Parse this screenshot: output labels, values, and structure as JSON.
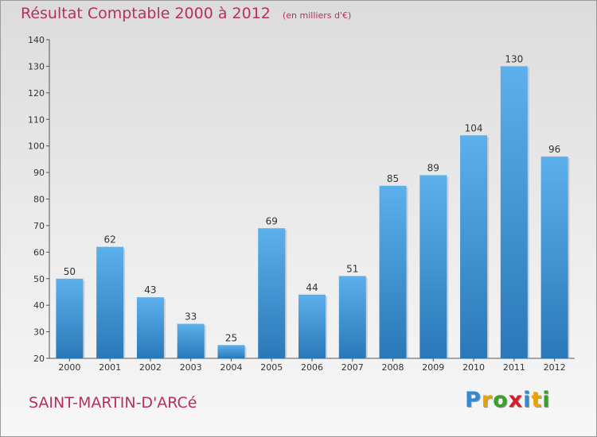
{
  "title": "Résultat Comptable 2000 à 2012",
  "subtitle": "(en milliers d'€)",
  "commune": "SAINT-MARTIN-D'ARCé",
  "logo": {
    "letters": [
      "P",
      "r",
      "o",
      "x",
      "i",
      "t",
      "i"
    ],
    "colors": [
      "#2f8bd8",
      "#e8a400",
      "#3aa02c",
      "#d01f2c",
      "#2f8bd8",
      "#e8a400",
      "#3aa02c"
    ]
  },
  "colors": {
    "bar_top": "#5cb0ec",
    "bar_bottom": "#2a78b8",
    "title": "#b8305a"
  },
  "chart_data": {
    "type": "bar",
    "categories": [
      "2000",
      "2001",
      "2002",
      "2003",
      "2004",
      "2005",
      "2006",
      "2007",
      "2008",
      "2009",
      "2010",
      "2011",
      "2012"
    ],
    "values": [
      50,
      62,
      43,
      33,
      25,
      69,
      44,
      51,
      85,
      89,
      104,
      130,
      96
    ],
    "title": "Résultat Comptable 2000 à 2012",
    "subtitle": "(en milliers d'€)",
    "xlabel": "",
    "ylabel": "",
    "ylim": [
      20,
      140
    ],
    "yticks": [
      20,
      30,
      40,
      50,
      60,
      70,
      80,
      90,
      100,
      110,
      120,
      130,
      140
    ],
    "grid": false,
    "data_labels": true
  }
}
